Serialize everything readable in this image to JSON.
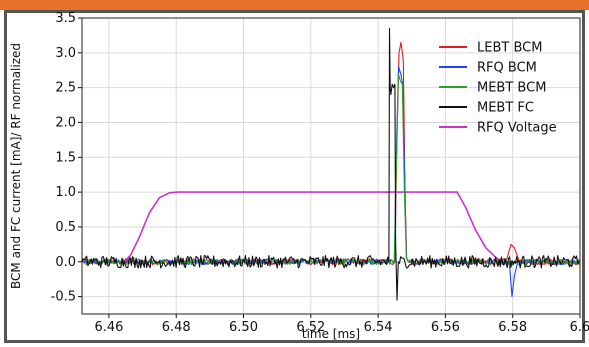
{
  "chart_data": {
    "type": "line",
    "title": "",
    "xlabel": "time [ms]",
    "ylabel": "BCM and FC current [mA]/ RF normalized",
    "xlim": [
      6.452,
      6.6
    ],
    "ylim": [
      -0.75,
      3.5
    ],
    "x_ticks": [
      6.46,
      6.48,
      6.5,
      6.52,
      6.54,
      6.56,
      6.58,
      6.6
    ],
    "x_tick_labels": [
      "6.46",
      "6.48",
      "6.50",
      "6.52",
      "6.54",
      "6.56",
      "6.58",
      "6.6"
    ],
    "y_ticks": [
      -0.5,
      0.0,
      0.5,
      1.0,
      1.5,
      2.0,
      2.5,
      3.0,
      3.5
    ],
    "y_tick_labels": [
      "-0.5",
      "0.0",
      "0.5",
      "1.0",
      "1.5",
      "2.0",
      "2.5",
      "3.0",
      "3.5"
    ],
    "grid": true,
    "legend_position": "top-right",
    "series": [
      {
        "name": "LEBT BCM",
        "color": "#e41a1c",
        "x": [
          6.452,
          6.545,
          6.5455,
          6.5462,
          6.5468,
          6.5475,
          6.548,
          6.5485,
          6.549,
          6.578,
          6.5795,
          6.5805,
          6.582,
          6.6
        ],
        "y": [
          0.0,
          0.0,
          1.5,
          3.0,
          3.15,
          2.9,
          1.0,
          0.05,
          0.0,
          0.0,
          0.25,
          0.2,
          0.0,
          0.0
        ]
      },
      {
        "name": "RFQ BCM",
        "color": "#1f3fff",
        "x": [
          6.452,
          6.5448,
          6.5454,
          6.5461,
          6.5467,
          6.5473,
          6.5479,
          6.5484,
          6.549,
          6.579,
          6.5798,
          6.5805,
          6.5815,
          6.6
        ],
        "y": [
          0.0,
          0.0,
          1.6,
          2.8,
          2.7,
          2.55,
          1.2,
          0.05,
          0.0,
          0.0,
          -0.5,
          -0.2,
          0.0,
          0.0
        ]
      },
      {
        "name": "MEBT BCM",
        "color": "#2ca02c",
        "x": [
          6.452,
          6.5448,
          6.5455,
          6.546,
          6.5466,
          6.5472,
          6.5478,
          6.5484,
          6.549,
          6.579,
          6.5798,
          6.581,
          6.6
        ],
        "y": [
          0.0,
          0.0,
          1.5,
          2.7,
          2.6,
          2.55,
          1.0,
          0.05,
          0.0,
          0.0,
          -0.05,
          0.0,
          0.0
        ]
      },
      {
        "name": "MEBT FC",
        "color": "#111111",
        "x": [
          6.452,
          6.5432,
          6.5434,
          6.5436,
          6.5438,
          6.5442,
          6.5446,
          6.545,
          6.5452,
          6.5456,
          6.546,
          6.6
        ],
        "y": [
          0.0,
          0.0,
          3.35,
          2.5,
          2.4,
          2.55,
          2.5,
          2.55,
          0.3,
          -0.55,
          0.0,
          0.0
        ]
      },
      {
        "name": "RFQ Voltage",
        "color": "#cc33cc",
        "x": [
          6.452,
          6.4645,
          6.4665,
          6.469,
          6.472,
          6.475,
          6.478,
          6.4805,
          6.55,
          6.5635,
          6.566,
          6.569,
          6.572,
          6.575,
          6.577,
          6.6
        ],
        "y": [
          0.0,
          0.0,
          0.1,
          0.35,
          0.7,
          0.92,
          0.99,
          1.0,
          1.0,
          1.0,
          0.78,
          0.45,
          0.2,
          0.06,
          0.0,
          0.0
        ]
      }
    ]
  }
}
